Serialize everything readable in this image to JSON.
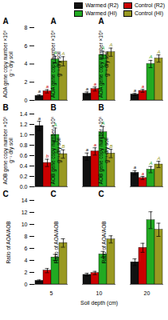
{
  "chart_data": [
    {
      "type": "bar",
      "title": "A",
      "ylabel": "AOA gene copy number ×10⁶ g⁻¹ dry soil",
      "categories": [
        "5",
        "10",
        "20"
      ],
      "series": [
        {
          "name": "Warmed (R2)",
          "color": "#111111",
          "values": [
            0.5,
            0.75,
            0.65
          ],
          "errors": [
            0.12,
            0.18,
            0.12
          ],
          "sig_labels": [
            "a",
            "a",
            "a"
          ]
        },
        {
          "name": "Control (R2)",
          "color": "#cc0000",
          "values": [
            1.0,
            1.25,
            1.05
          ],
          "errors": [
            0.18,
            0.22,
            0.16
          ],
          "sig_labels": [
            "a",
            "a",
            "a"
          ]
        },
        {
          "name": "Warmed (HI)",
          "color": "#22aa22",
          "values": [
            4.5,
            5.0,
            4.0
          ],
          "errors": [
            0.35,
            0.4,
            0.4
          ],
          "sig_labels": [
            "A",
            "A",
            "A"
          ]
        },
        {
          "name": "Control (HI)",
          "color": "#999922",
          "values": [
            4.3,
            5.3,
            4.6
          ],
          "errors": [
            0.5,
            0.45,
            0.4
          ],
          "sig_labels": [
            "A",
            "A",
            "A"
          ]
        }
      ],
      "ylim": [
        0,
        8
      ],
      "yticks": [
        0,
        2,
        4,
        6,
        8
      ],
      "grid": false,
      "legend": "upper right",
      "tick_labels": "y"
    },
    {
      "type": "bar",
      "title": "B",
      "ylabel": "AOB gene copy number ×10⁵ g⁻¹ dry soil",
      "categories": [
        "5",
        "10",
        "20"
      ],
      "series": [
        {
          "name": "Warmed (R2)",
          "color": "#111111",
          "values": [
            1.17,
            0.58,
            0.27
          ],
          "errors": [
            0.09,
            0.07,
            0.04
          ],
          "sig_labels": [
            "a",
            "a",
            "a"
          ]
        },
        {
          "name": "Control (R2)",
          "color": "#cc0000",
          "values": [
            0.46,
            0.68,
            0.17
          ],
          "errors": [
            0.07,
            0.07,
            0.03
          ],
          "sig_labels": [
            "b",
            "a",
            "a"
          ]
        },
        {
          "name": "Warmed (HI)",
          "color": "#22aa22",
          "values": [
            1.0,
            1.05,
            0.33
          ],
          "errors": [
            0.13,
            0.11,
            0.06
          ],
          "sig_labels": [
            "A",
            "A",
            "A"
          ]
        },
        {
          "name": "Control (HI)",
          "color": "#999922",
          "values": [
            0.63,
            0.64,
            0.43
          ],
          "errors": [
            0.08,
            0.08,
            0.06
          ],
          "sig_labels": [
            "B",
            "B",
            "A"
          ]
        }
      ],
      "ylim": [
        0,
        1.4
      ],
      "yticks": [
        {
          "value": 0,
          "label": "0.0"
        },
        0.2,
        0.4,
        0.6,
        0.8,
        {
          "value": 1,
          "label": "1.0"
        },
        1.2,
        1.4
      ],
      "grid": false,
      "tick_labels": "y"
    },
    {
      "type": "bar",
      "title": "C",
      "ylabel": "Ratio of AOA/AOB",
      "xlabel": "Soil depth (cm)",
      "categories": [
        "5",
        "10",
        "20"
      ],
      "series": [
        {
          "name": "Warmed (R2)",
          "color": "#111111",
          "values": [
            0.6,
            1.6,
            3.7
          ],
          "errors": [
            0.15,
            0.25,
            0.55
          ]
        },
        {
          "name": "Control (R2)",
          "color": "#cc0000",
          "values": [
            2.3,
            1.9,
            6.1
          ],
          "errors": [
            0.35,
            0.28,
            0.75
          ]
        },
        {
          "name": "Warmed (HI)",
          "color": "#22aa22",
          "values": [
            4.5,
            5.0,
            10.7
          ],
          "errors": [
            0.5,
            0.5,
            1.4
          ]
        },
        {
          "name": "Control (HI)",
          "color": "#999922",
          "values": [
            6.9,
            7.5,
            9.1
          ],
          "errors": [
            0.7,
            0.6,
            1.1
          ]
        }
      ],
      "ylim": [
        0,
        14
      ],
      "yticks": [
        0,
        2,
        4,
        6,
        8,
        10,
        12,
        14
      ],
      "grid": false
    }
  ]
}
